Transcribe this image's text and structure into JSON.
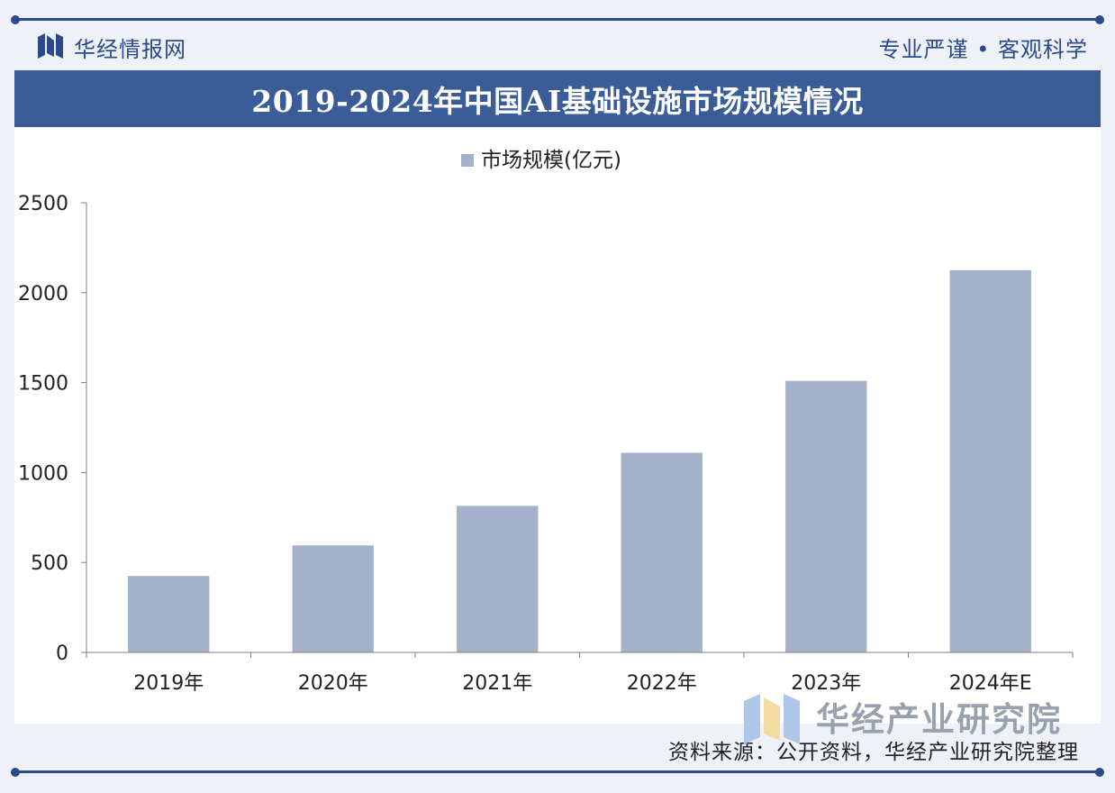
{
  "header": {
    "brand": "华经情报网",
    "slogan": "专业严谨 • 客观科学"
  },
  "chart_data": {
    "type": "bar",
    "title": "2019-2024年中国AI基础设施市场规模情况",
    "categories": [
      "2019年",
      "2020年",
      "2021年",
      "2022年",
      "2023年",
      "2024年E"
    ],
    "series": [
      {
        "name": "市场规模(亿元)",
        "values": [
          425,
          595,
          815,
          1110,
          1510,
          2125
        ]
      }
    ],
    "ylim": [
      0,
      2500
    ],
    "yticks": [
      0,
      500,
      1000,
      1500,
      2000,
      2500
    ],
    "legend_position": "top-center",
    "grid": false,
    "colors": {
      "bar": "#a3b2ca",
      "axis": "#7f7f7f"
    }
  },
  "footer": {
    "source": "资料来源：公开资料，华经产业研究院整理",
    "watermark_brand": "华经产业研究院"
  },
  "colors": {
    "primary": "#2b4a8b",
    "title_band": "#3a5d98",
    "background": "#eef1f7"
  }
}
